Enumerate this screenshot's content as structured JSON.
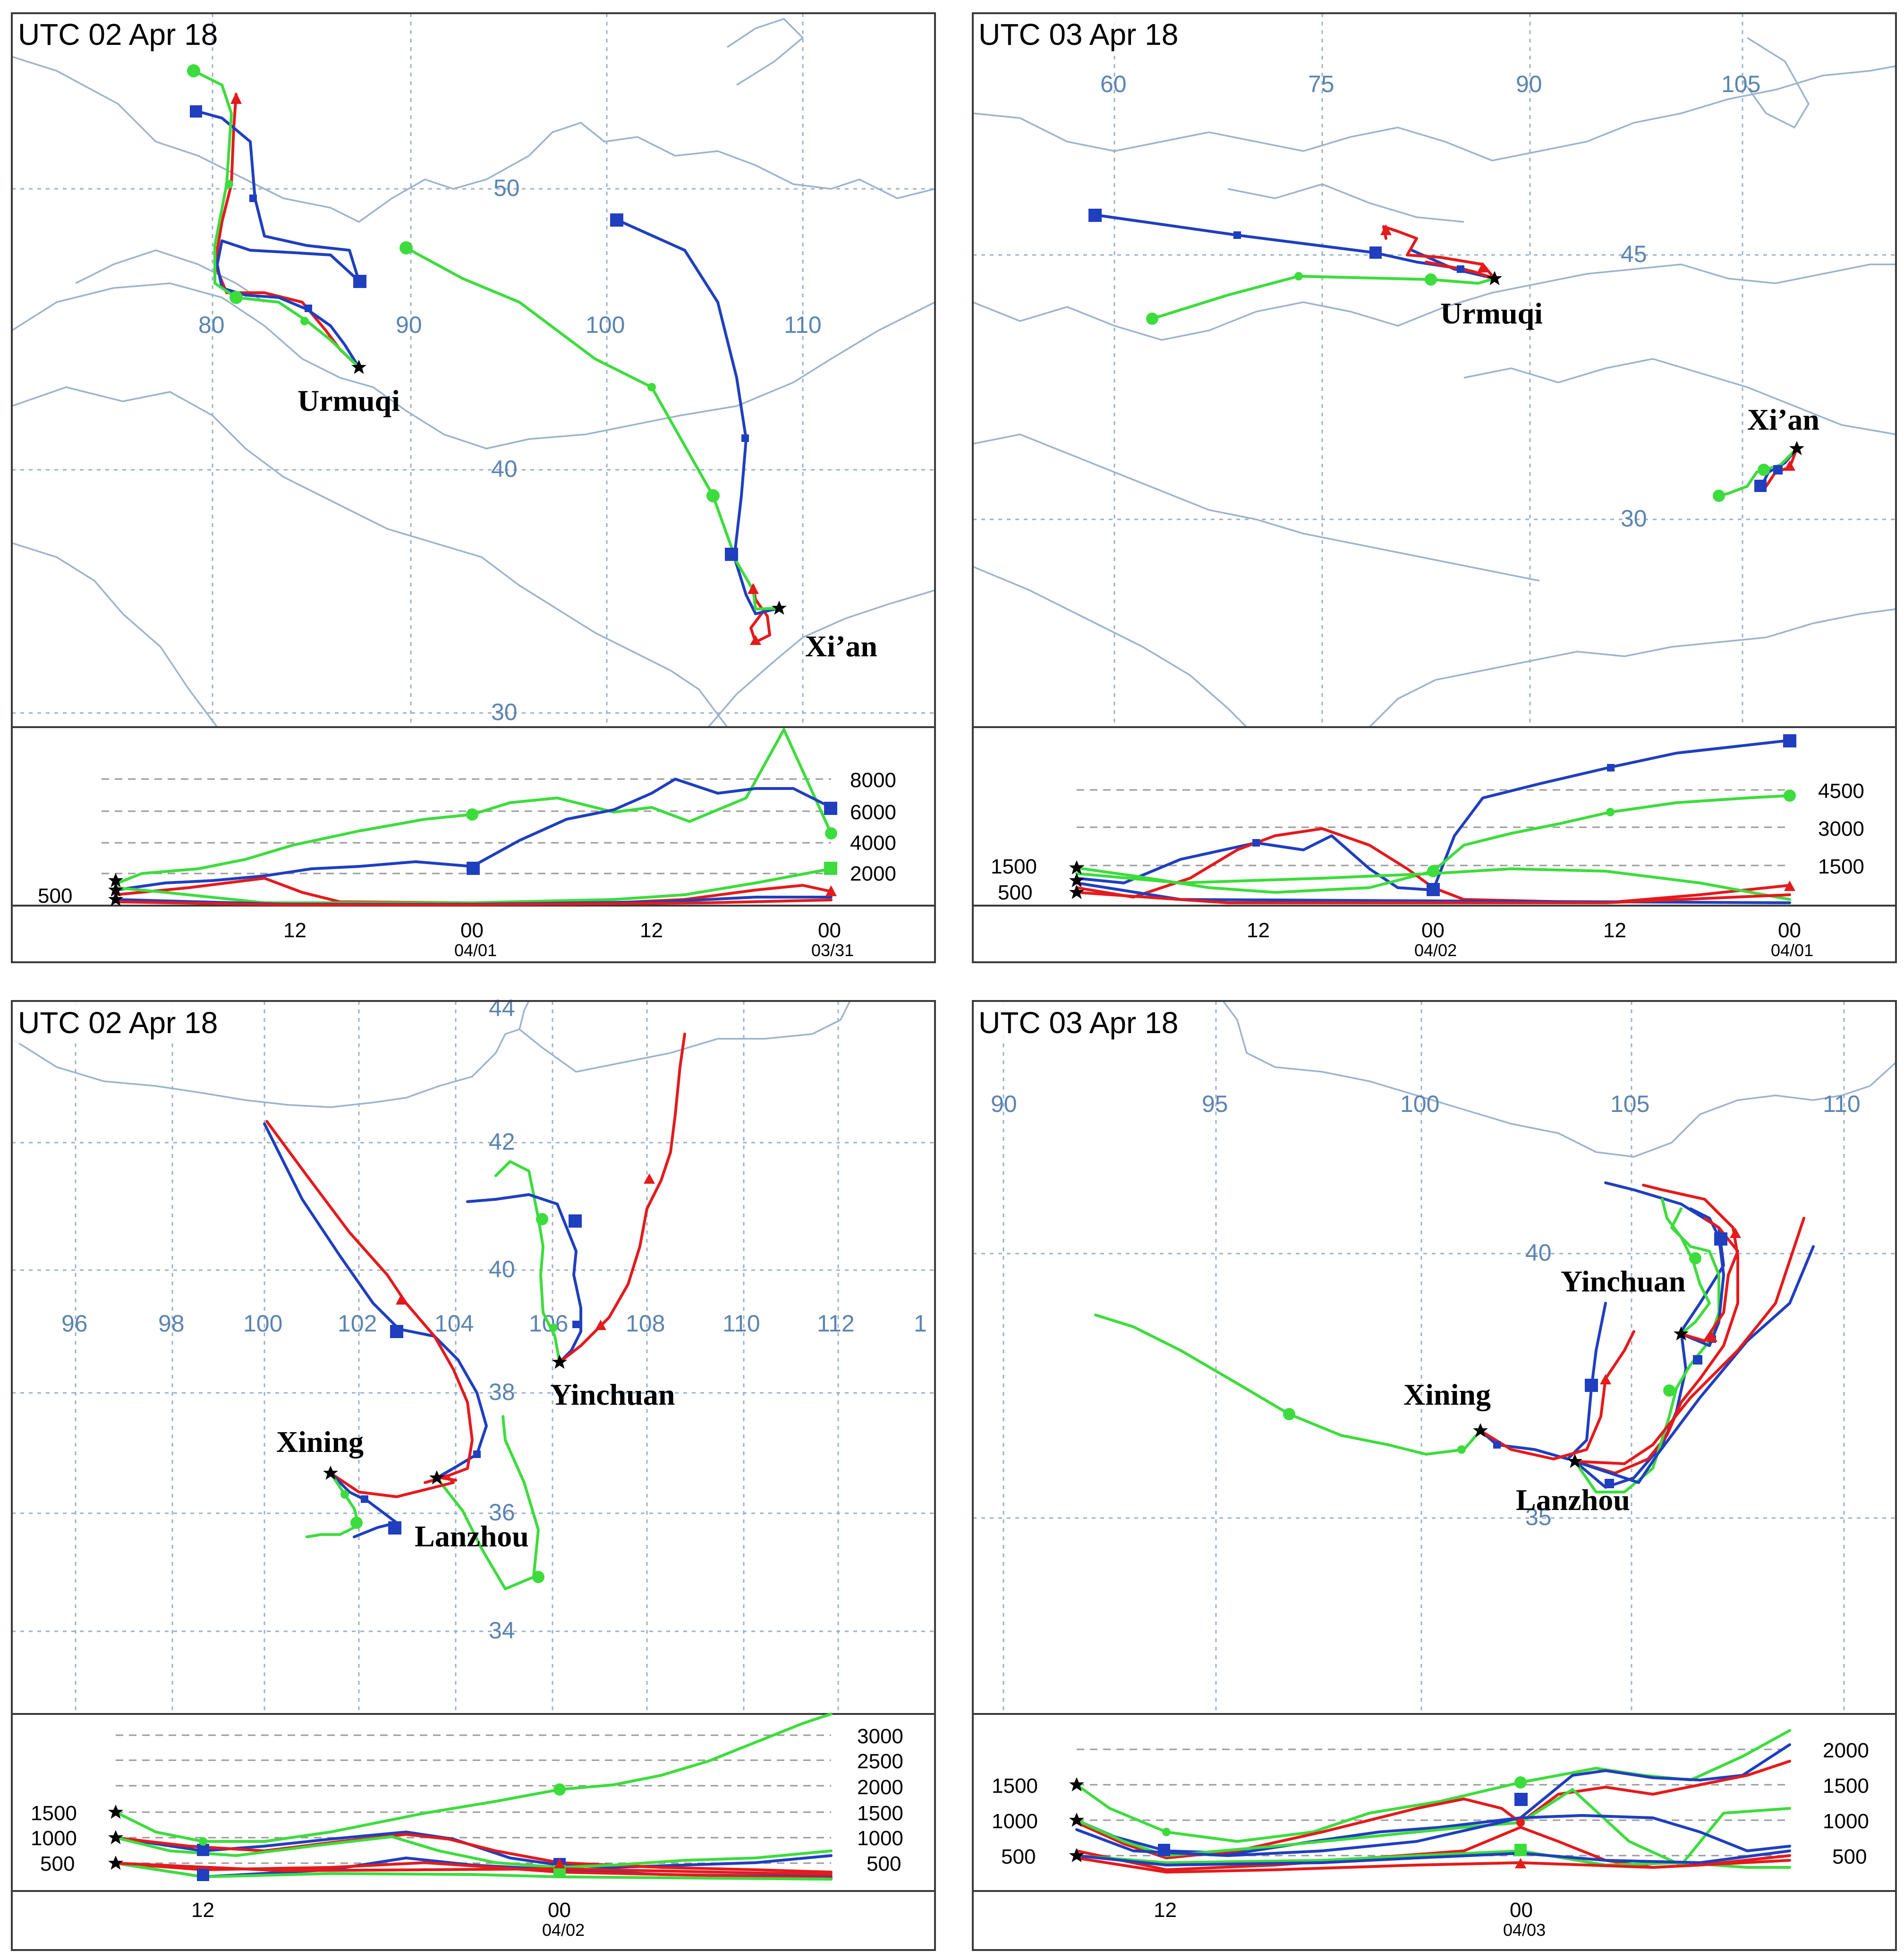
{
  "colors": {
    "red": "#e41a1c",
    "blue": "#1f3fbf",
    "green": "#3ddc3d",
    "coast": "#9db3cc",
    "label": "#5b84b1"
  },
  "legend_text": {
    "source_marker": "★"
  },
  "panels": [
    {
      "id": "p1",
      "title": "UTC 02 Apr 18",
      "lat_labels": [
        "50",
        "40",
        "30"
      ],
      "lon_labels": [
        "80",
        "90",
        "100",
        "110"
      ],
      "cities": [
        "Urmuqi",
        "Xi’an"
      ],
      "height_labels": [
        "8000",
        "6000",
        "4000",
        "2000",
        "500"
      ],
      "time_ticks": [
        "12",
        "00",
        "12",
        "00"
      ],
      "date_labels": [
        "04/01",
        "03/31"
      ]
    },
    {
      "id": "p2",
      "title": "UTC 03 Apr 18",
      "lat_labels": [
        "45",
        "30"
      ],
      "lon_labels": [
        "60",
        "75",
        "90",
        "105"
      ],
      "cities": [
        "Urmuqi",
        "Xi’an"
      ],
      "height_labels": [
        "4500",
        "3000",
        "1500",
        "1500",
        "500"
      ],
      "time_ticks": [
        "12",
        "00",
        "12",
        "00"
      ],
      "date_labels": [
        "04/02",
        "04/01"
      ]
    },
    {
      "id": "p3",
      "title": "UTC 02 Apr 18",
      "lat_labels": [
        "44",
        "42",
        "40",
        "38",
        "36",
        "34"
      ],
      "lon_labels": [
        "96",
        "98",
        "100",
        "102",
        "104",
        "106",
        "108",
        "110",
        "112",
        "1"
      ],
      "cities": [
        "Yinchuan",
        "Xining",
        "Lanzhou"
      ],
      "height_labels": [
        "3000",
        "2500",
        "2000",
        "1500",
        "1000",
        "500",
        "1500",
        "1000",
        "500"
      ],
      "time_ticks": [
        "12",
        "00"
      ],
      "date_labels": [
        "04/02"
      ]
    },
    {
      "id": "p4",
      "title": "UTC 03 Apr 18",
      "lat_labels": [
        "40",
        "35"
      ],
      "lon_labels": [
        "90",
        "95",
        "100",
        "105",
        "110"
      ],
      "cities": [
        "Yinchuan",
        "Xining",
        "Lanzhou"
      ],
      "height_labels": [
        "2000",
        "1500",
        "1000",
        "500",
        "1500",
        "1000",
        "500"
      ],
      "time_ticks": [
        "12",
        "00"
      ],
      "date_labels": [
        "04/03"
      ]
    }
  ]
}
